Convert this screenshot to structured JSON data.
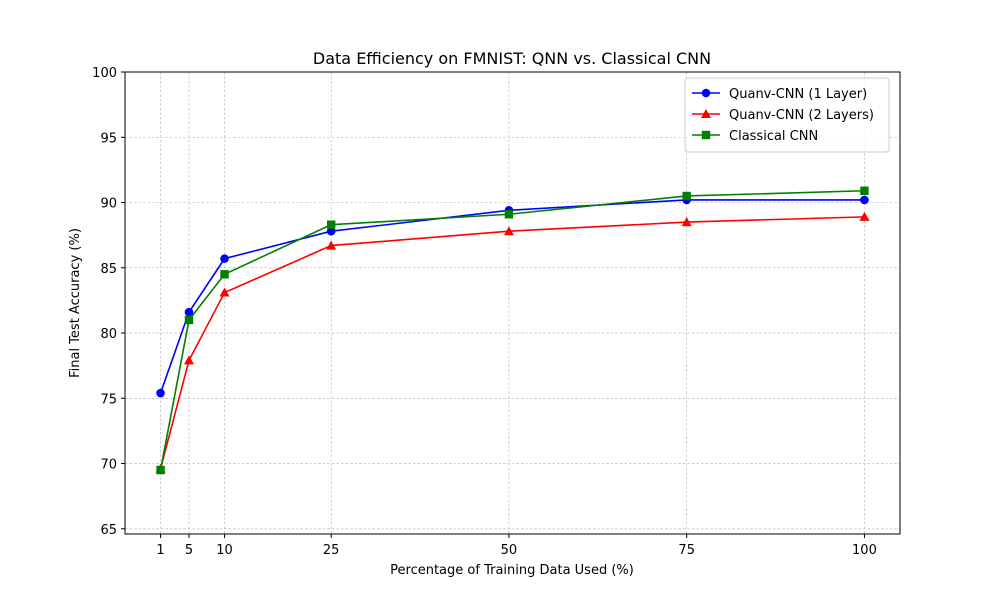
{
  "chart_data": {
    "type": "line",
    "title": "Data Efficiency on FMNIST: QNN vs. Classical CNN",
    "xlabel": "Percentage of Training Data Used (%)",
    "ylabel": "Final Test Accuracy (%)",
    "x": [
      1,
      5,
      10,
      25,
      50,
      75,
      100
    ],
    "xticks": [
      1,
      5,
      10,
      25,
      50,
      75,
      100
    ],
    "yticks": [
      65,
      70,
      75,
      80,
      85,
      90,
      95,
      100
    ],
    "xlim": [
      -4,
      105
    ],
    "ylim": [
      64.6,
      100
    ],
    "grid": true,
    "legend_position": "top-right",
    "series": [
      {
        "name": "Quanv-CNN (1 Layer)",
        "values": [
          75.4,
          81.6,
          85.7,
          87.8,
          89.4,
          90.2,
          90.2
        ],
        "color": "#0000ff",
        "marker": "circle"
      },
      {
        "name": "Quanv-CNN (2 Layers)",
        "values": [
          69.6,
          77.9,
          83.1,
          86.7,
          87.8,
          88.5,
          88.9
        ],
        "color": "#ff0000",
        "marker": "triangle"
      },
      {
        "name": "Classical CNN",
        "values": [
          69.5,
          81.0,
          84.5,
          88.3,
          89.1,
          90.5,
          90.9
        ],
        "color": "#008000",
        "marker": "square"
      }
    ]
  }
}
